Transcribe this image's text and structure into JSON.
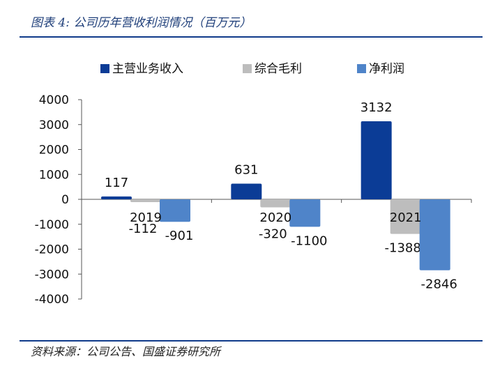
{
  "header": {
    "title": "图表 4: 公司历年营收利润情况（百万元）"
  },
  "footer": {
    "source": "资料来源：公司公告、国盛证券研究所"
  },
  "chart_data": {
    "type": "bar",
    "title": "公司历年营收利润情况（百万元）",
    "categories": [
      "2019",
      "2020",
      "2021"
    ],
    "series": [
      {
        "name": "主营业务收入",
        "values": [
          117,
          631,
          3132
        ],
        "color": "#0b3c96"
      },
      {
        "name": "综合毛利",
        "values": [
          -112,
          -320,
          -1388
        ],
        "color": "#bdbdbd"
      },
      {
        "name": "净利润",
        "values": [
          -901,
          -1100,
          -2846
        ],
        "color": "#4f84c9"
      }
    ],
    "xlabel": "",
    "ylabel": "",
    "ylim": [
      -4000,
      4000
    ],
    "yticks": [
      4000,
      3000,
      2000,
      1000,
      0,
      -1000,
      -2000,
      -3000,
      -4000
    ],
    "legend": "top",
    "grid": false
  }
}
